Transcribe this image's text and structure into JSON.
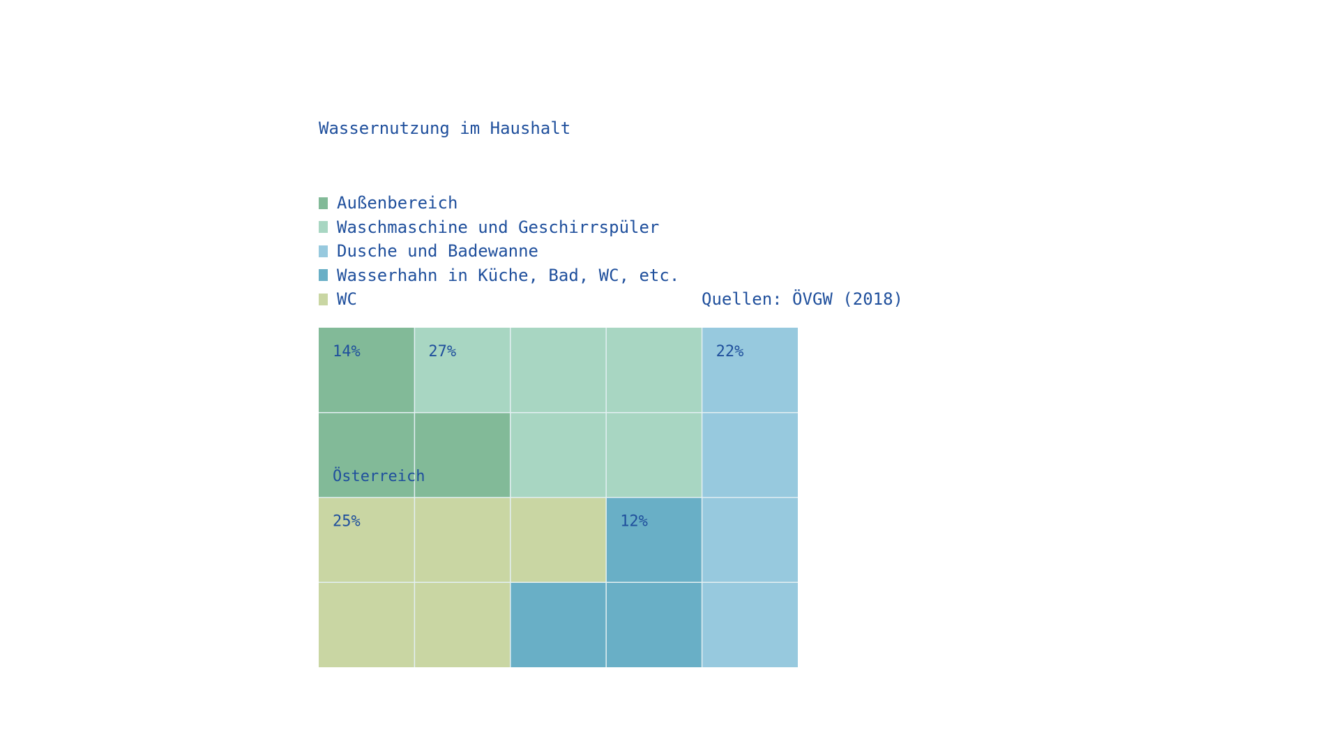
{
  "chart_data": {
    "type": "waffle",
    "title": "Wassernutzung im Haushalt",
    "source": "Quellen: ÖVGW (2018)",
    "region_label": "Österreich",
    "unit": "%",
    "series": [
      {
        "name": "Außenbereich",
        "value": 14,
        "label": "14%",
        "color": "#82ba98"
      },
      {
        "name": "Waschmaschine und Geschirrspüler",
        "value": 27,
        "label": "27%",
        "color": "#a8d6c2"
      },
      {
        "name": "Dusche und Badewanne",
        "value": 22,
        "label": "22%",
        "color": "#97c9de"
      },
      {
        "name": "Wasserhahn in Küche, Bad, WC, etc.",
        "value": 12,
        "label": "12%",
        "color": "#69afc6"
      },
      {
        "name": "WC",
        "value": 25,
        "label": "25%",
        "color": "#c9d6a3"
      }
    ],
    "grid": {
      "columns": 5,
      "rows": 4,
      "units_per_cell": 5
    },
    "cell_series": [
      [
        0,
        1,
        1,
        1,
        2
      ],
      [
        0,
        0,
        1,
        1,
        2
      ],
      [
        4,
        4,
        4,
        3,
        2
      ],
      [
        4,
        4,
        3,
        3,
        2
      ]
    ],
    "label_cells": [
      {
        "series": 0,
        "row": 0,
        "col": 0
      },
      {
        "series": 1,
        "row": 0,
        "col": 1
      },
      {
        "series": 2,
        "row": 0,
        "col": 4
      },
      {
        "series": 4,
        "row": 2,
        "col": 0
      },
      {
        "series": 3,
        "row": 2,
        "col": 3
      }
    ],
    "region_label_cell": {
      "row": 1,
      "col": 0
    },
    "legend_position": "top-left",
    "gridline_color": "#e4f0f3",
    "text_color": "#1f4f9c"
  }
}
